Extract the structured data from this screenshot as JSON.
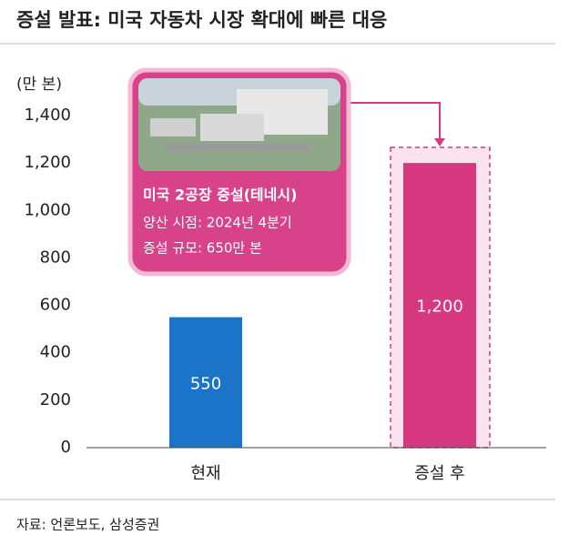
{
  "chart_data": {
    "type": "bar",
    "title": "증설 발표: 미국 자동차 시장 확대에 빠른 대응",
    "y_unit": "(만 본)",
    "categories": [
      "현재",
      "증설 후"
    ],
    "values": [
      550,
      1200
    ],
    "value_labels": [
      "550",
      "1,200"
    ],
    "colors": [
      "#1b74c7",
      "#d6397f"
    ],
    "ylim": [
      0,
      1400
    ],
    "yticks": [
      0,
      200,
      400,
      600,
      800,
      {
        "value": 1000,
        "label": "1,000"
      },
      {
        "value": 1200,
        "label": "1,200"
      },
      {
        "value": 1400,
        "label": "1,400"
      }
    ],
    "annotation": {
      "title": "미국 2공장 증설(테네시)",
      "lines": [
        "양산 시점: 2024년 4분기",
        "증설 규모: 650만 본"
      ]
    },
    "source": "자료: 언론보도, 삼성증권"
  }
}
